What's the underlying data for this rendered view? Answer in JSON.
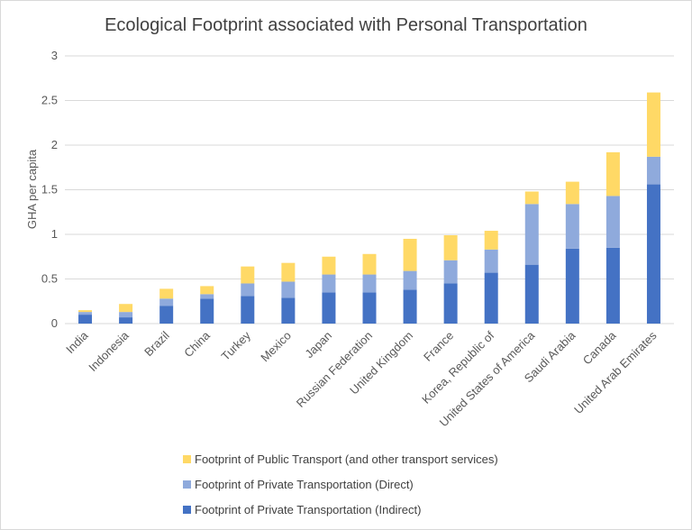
{
  "chart_data": {
    "type": "bar",
    "stacked": true,
    "title": "Ecological Footprint associated with Personal Transportation",
    "xlabel": "",
    "ylabel": "GHA per capita",
    "ylim": [
      0,
      3
    ],
    "yticks": [
      0,
      0.5,
      1,
      1.5,
      2,
      2.5,
      3
    ],
    "ytick_labels": [
      "0",
      "0.5",
      "1",
      "1.5",
      "2",
      "2.5",
      "3"
    ],
    "grid": true,
    "legend_position": "bottom",
    "categories": [
      "India",
      "Indonesia",
      "Brazil",
      "China",
      "Turkey",
      "Mexico",
      "Japan",
      "Russian Federation",
      "United Kingdom",
      "France",
      "Korea, Republic of",
      "United States of America",
      "Saudi Arabia",
      "Canada",
      "United Arab Emirates"
    ],
    "series": [
      {
        "name": "Footprint of Private Transportation (Indirect)",
        "color": "#4472c4",
        "values": [
          0.1,
          0.07,
          0.2,
          0.28,
          0.31,
          0.29,
          0.35,
          0.35,
          0.38,
          0.45,
          0.57,
          0.66,
          0.84,
          0.85,
          1.56
        ]
      },
      {
        "name": "Footprint of Private Transportation (Direct)",
        "color": "#8faadc",
        "values": [
          0.03,
          0.06,
          0.08,
          0.05,
          0.14,
          0.18,
          0.2,
          0.2,
          0.21,
          0.26,
          0.26,
          0.68,
          0.5,
          0.58,
          0.31
        ]
      },
      {
        "name": "Footprint of Public Transport (and other transport services)",
        "color": "#ffd966",
        "values": [
          0.02,
          0.09,
          0.11,
          0.09,
          0.19,
          0.21,
          0.2,
          0.23,
          0.36,
          0.28,
          0.21,
          0.14,
          0.25,
          0.49,
          0.72
        ]
      }
    ],
    "legend_order": [
      2,
      1,
      0
    ]
  }
}
